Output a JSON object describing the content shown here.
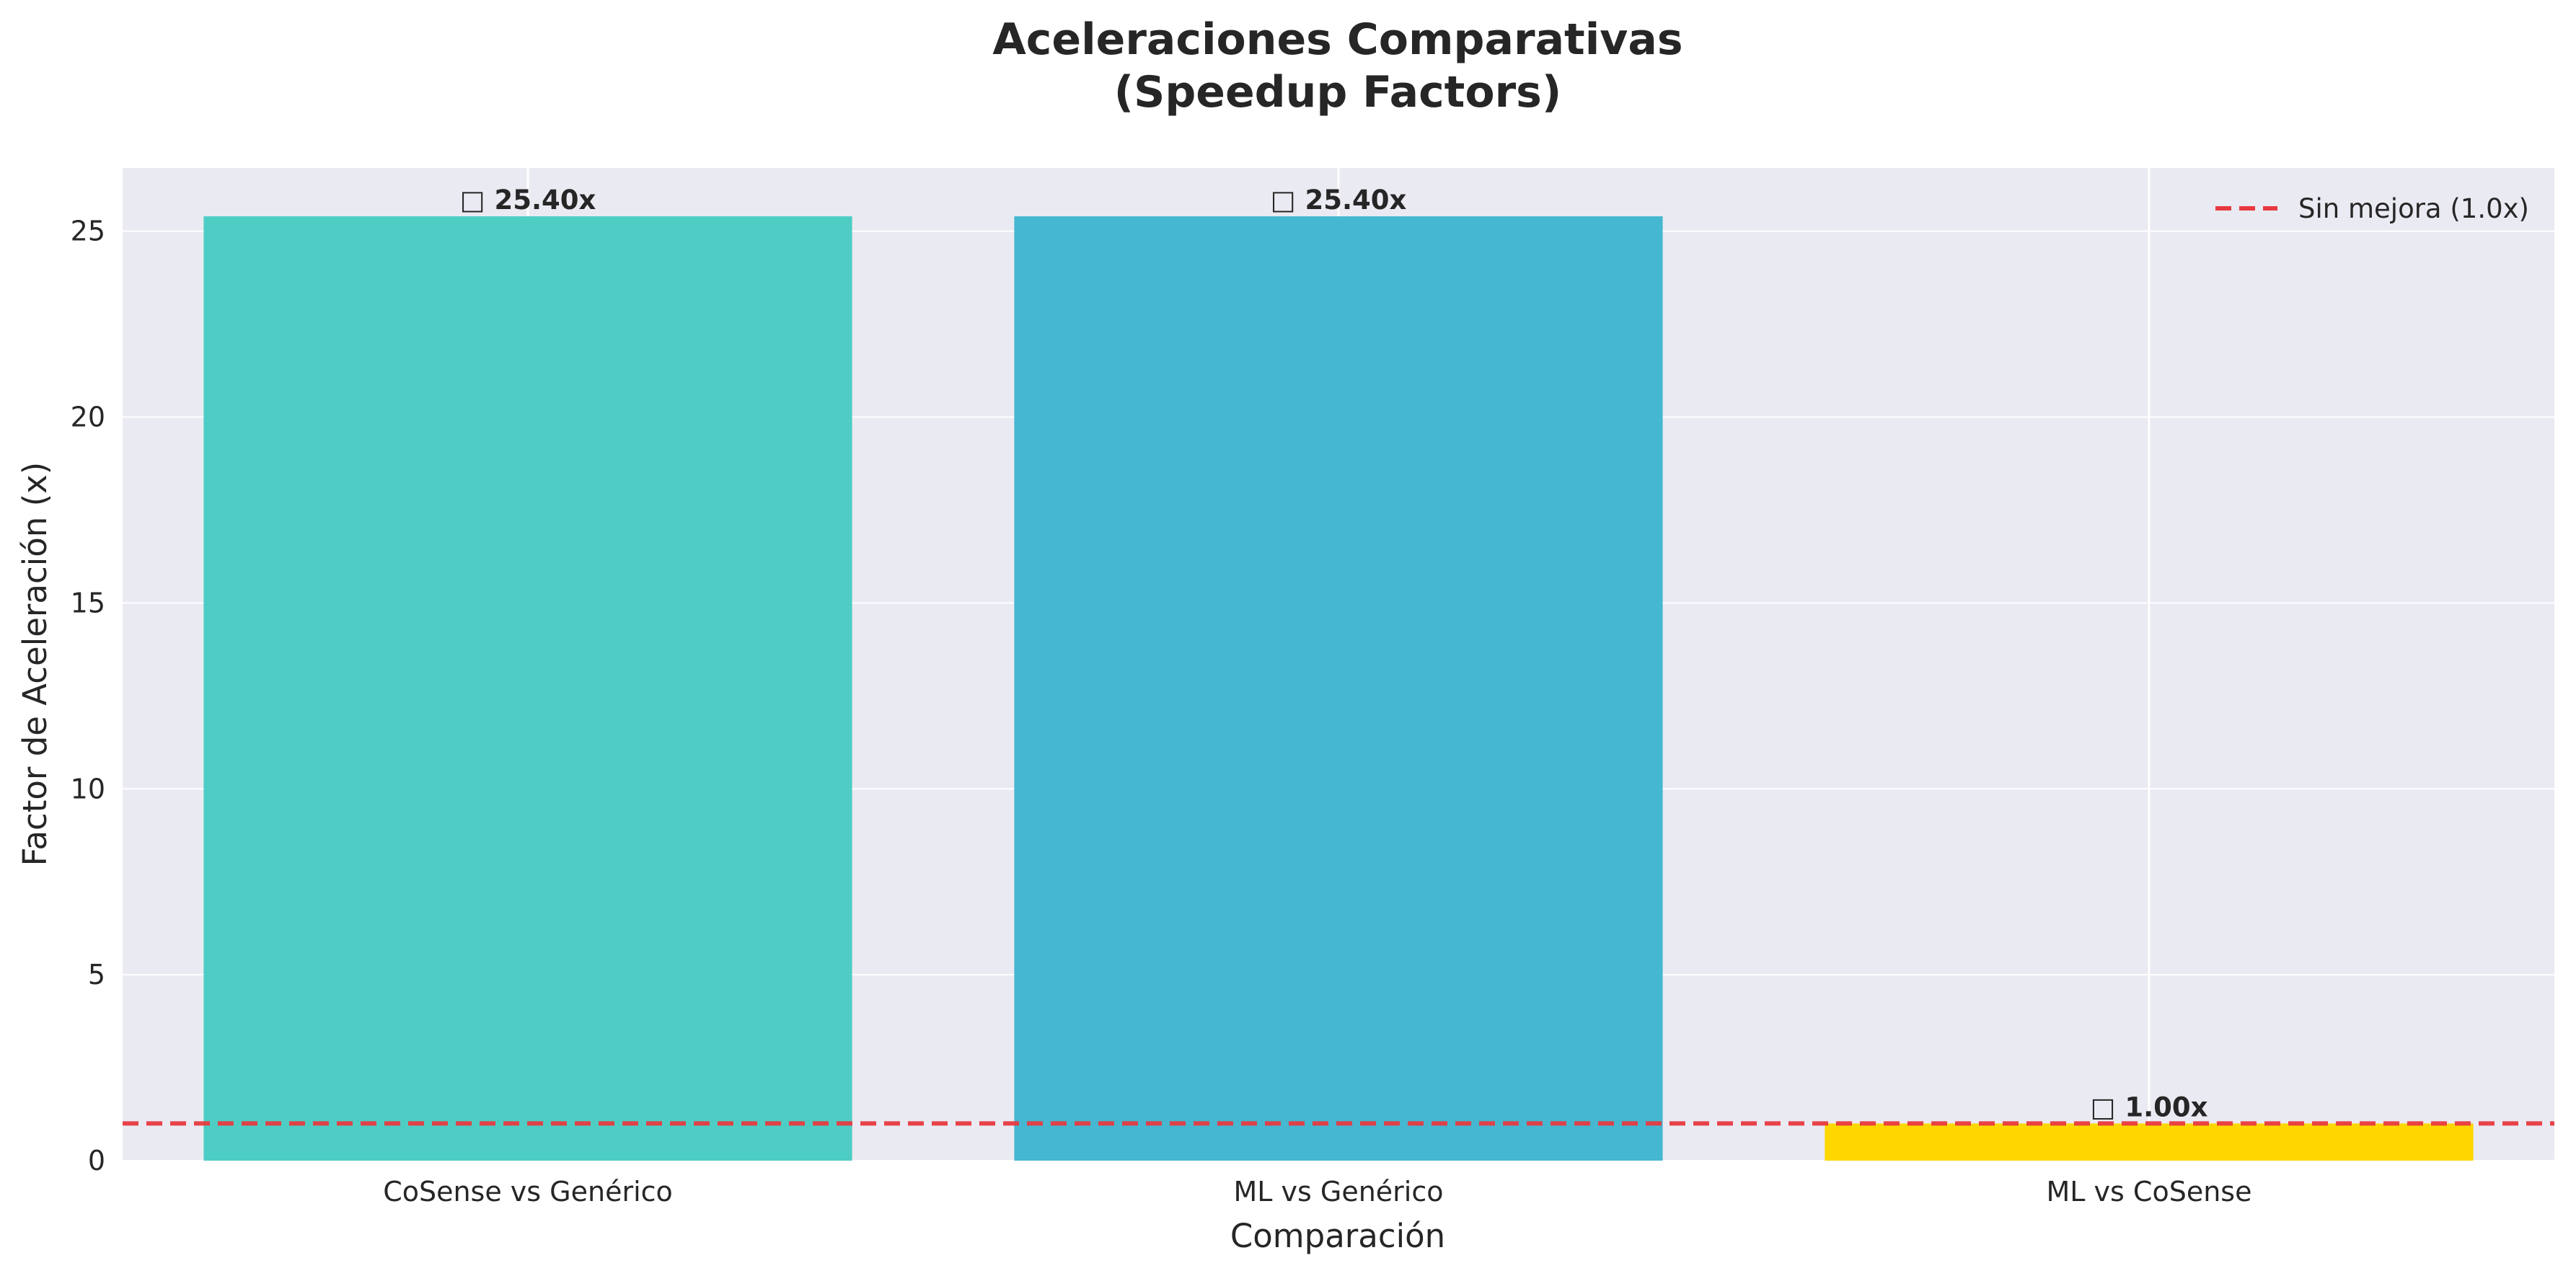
{
  "chart_data": {
    "type": "bar",
    "title_lines": [
      "Aceleraciones Comparativas",
      "(Speedup Factors)"
    ],
    "xlabel": "Comparación",
    "ylabel": "Factor de Aceleración (x)",
    "categories": [
      "CoSense vs Genérico",
      "ML vs Genérico",
      "ML vs CoSense"
    ],
    "values": [
      25.4,
      25.4,
      1.0
    ],
    "value_labels": [
      "25.40x",
      "25.40x",
      "1.00x"
    ],
    "label_glyph": "□",
    "bar_colors": [
      "#4ECDC4",
      "#45B7D1",
      "#FFD700"
    ],
    "ylim": [
      0,
      26.7
    ],
    "yticks": [
      0,
      5,
      10,
      15,
      20,
      25
    ],
    "reference_line": {
      "value": 1.0,
      "label": "Sin mejora (1.0x)",
      "color": "#E8393F",
      "style": "dashed"
    },
    "legend_position": "top-right",
    "grid": true,
    "background": "#EAEAF2"
  }
}
